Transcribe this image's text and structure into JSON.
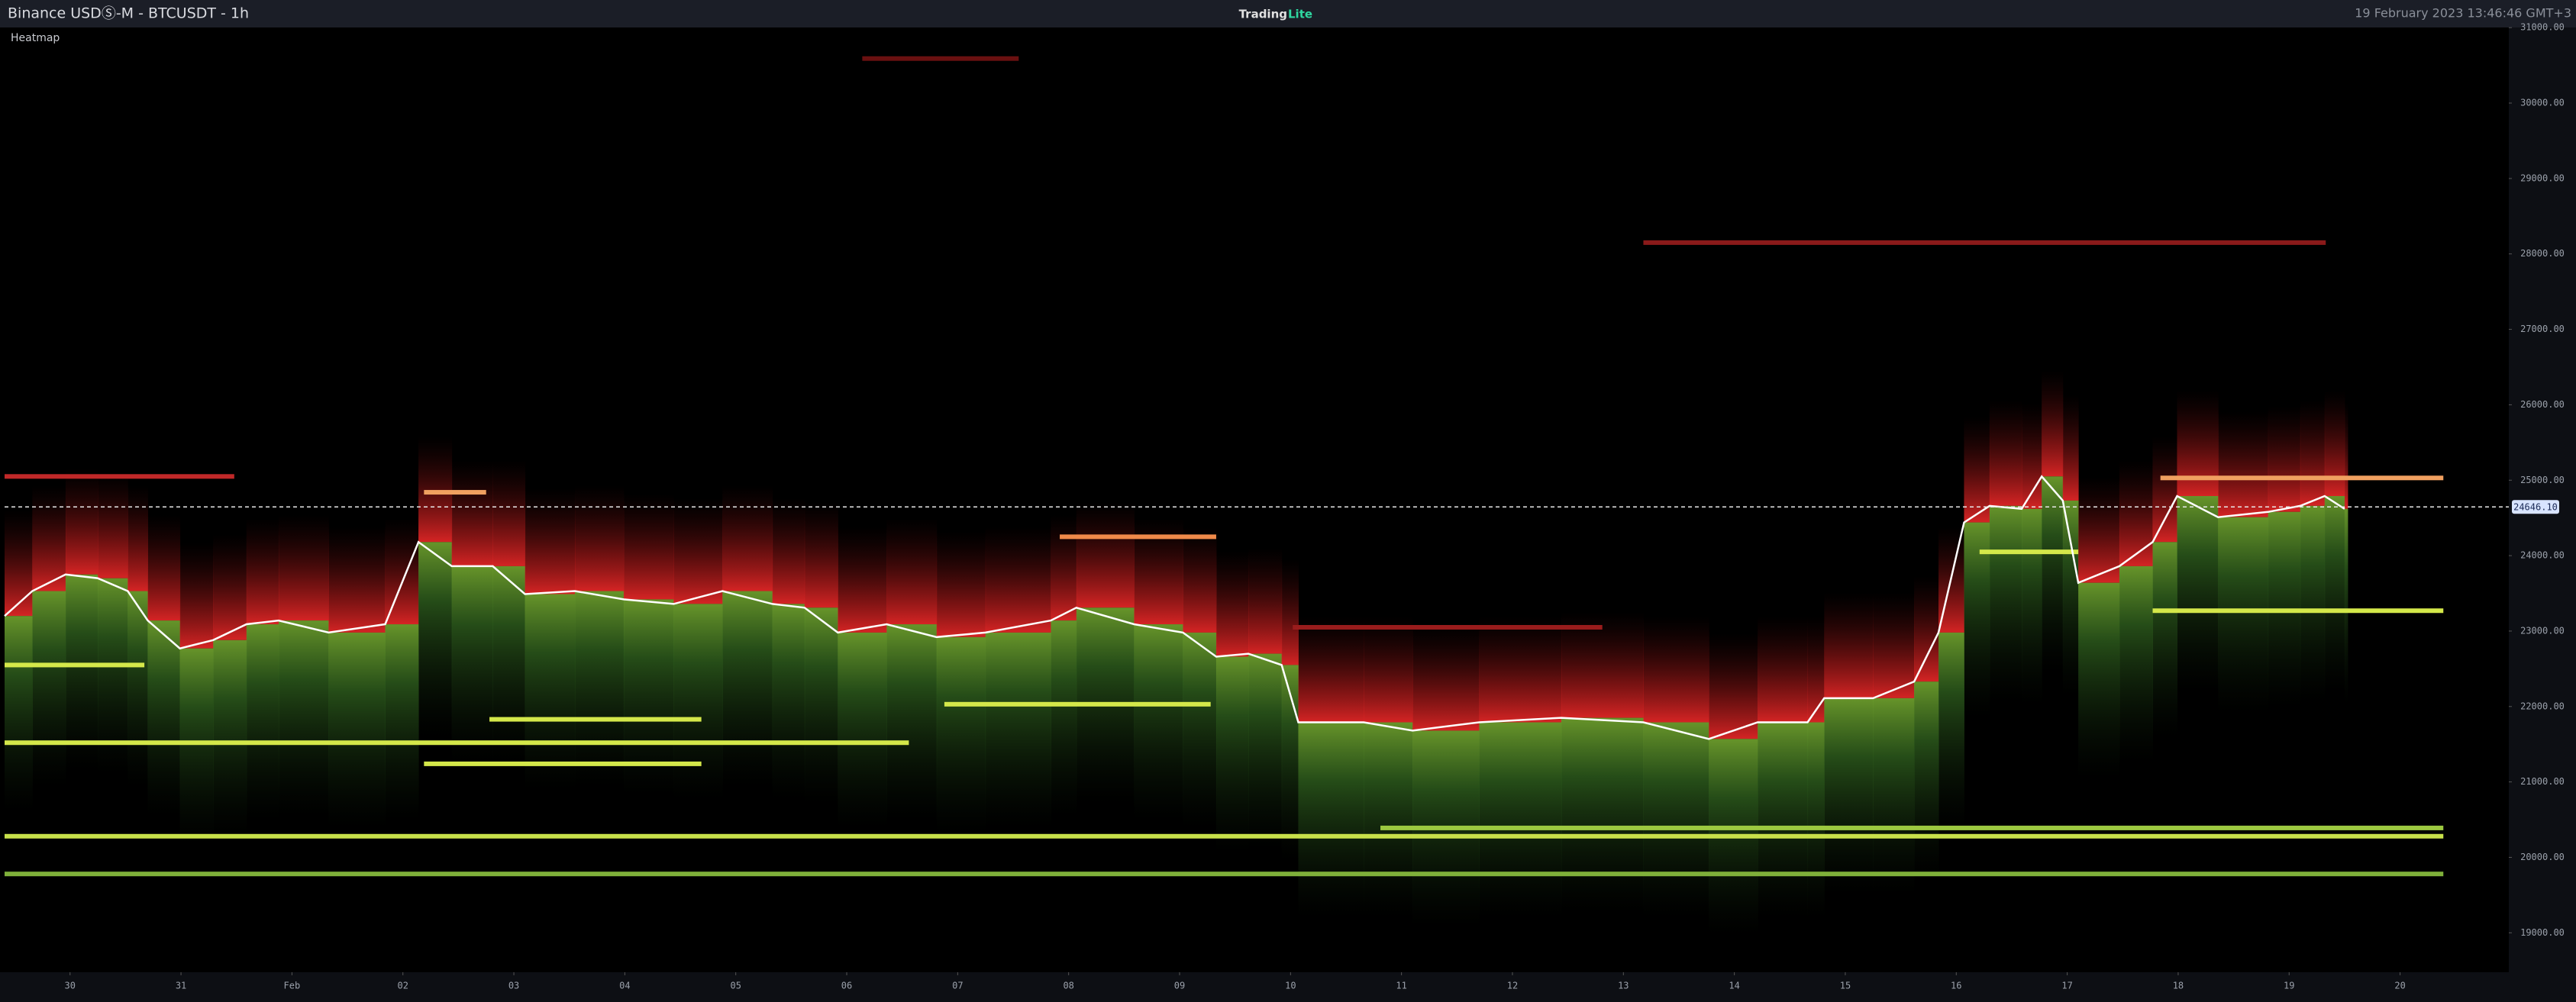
{
  "chart_data": {
    "type": "heatmap",
    "title": "Binance USDⓈ-M - BTCUSDT - 1h",
    "brand": "Trading",
    "brand_suffix": "Lite",
    "timestamp": "19 February 2023 13:46:46 GMT+3",
    "indicator": "Heatmap",
    "color": "#ffffff",
    "x": [
      29.41,
      29.66,
      29.96,
      30.25,
      30.52,
      30.7,
      30.99,
      31.29,
      31.59,
      31.88,
      32.33,
      32.84,
      33.14,
      33.44,
      33.81,
      34.1,
      34.55,
      34.99,
      35.44,
      35.88,
      36.33,
      36.62,
      36.92,
      37.36,
      37.81,
      38.25,
      38.84,
      39.07,
      39.59,
      40.03,
      40.33,
      40.62,
      40.92,
      41.07,
      41.66,
      42.1,
      42.7,
      43.44,
      44.18,
      44.77,
      45.21,
      45.66,
      45.81,
      46.25,
      46.62,
      46.84,
      47.07,
      47.3,
      47.59,
      47.77,
      47.96,
      48.1,
      48.47,
      48.77,
      48.99,
      49.36,
      49.81,
      50.1,
      50.32,
      50.5
    ],
    "values": [
      23200,
      23530,
      23750,
      23700,
      23530,
      23140,
      22770,
      22880,
      23090,
      23140,
      22980,
      23090,
      24180,
      23860,
      23860,
      23490,
      23530,
      23420,
      23360,
      23530,
      23360,
      23310,
      22980,
      23090,
      22920,
      22980,
      23140,
      23310,
      23090,
      22980,
      22660,
      22700,
      22550,
      21790,
      21790,
      21680,
      21790,
      21850,
      21790,
      21570,
      21790,
      21790,
      22110,
      22110,
      22330,
      22980,
      24440,
      24660,
      24620,
      25050,
      24730,
      23640,
      23860,
      24180,
      24790,
      24510,
      24580,
      24660,
      24790,
      24620
    ],
    "levels": [
      {
        "value": 22550,
        "x": [
          29.41,
          30.67
        ],
        "color": "#d4e84a"
      },
      {
        "value": 21520,
        "x": [
          29.41,
          37.56
        ],
        "color": "#d4e84a"
      },
      {
        "value": 21830,
        "x": [
          33.78,
          35.69
        ],
        "color": "#d4e84a"
      },
      {
        "value": 21240,
        "x": [
          33.19,
          35.69
        ],
        "color": "#d4e84a"
      },
      {
        "value": 22030,
        "x": [
          37.88,
          40.28
        ],
        "color": "#d4e84a"
      },
      {
        "value": 20280,
        "x": [
          29.41,
          51.39
        ],
        "color": "#c8e04a"
      },
      {
        "value": 19780,
        "x": [
          29.41,
          51.39
        ],
        "color": "#7fb03a"
      },
      {
        "value": 23270,
        "x": [
          48.77,
          51.39
        ],
        "color": "#d4e84a"
      },
      {
        "value": 24050,
        "x": [
          47.21,
          48.1
        ],
        "color": "#d4e84a"
      },
      {
        "value": 20390,
        "x": [
          41.81,
          51.39
        ],
        "color": "#9cc840"
      },
      {
        "value": 24250,
        "x": [
          38.92,
          40.33
        ],
        "color": "#f08a4a"
      },
      {
        "value": 24840,
        "x": [
          33.19,
          33.75
        ],
        "color": "#f0a060"
      },
      {
        "value": 25030,
        "x": [
          48.84,
          51.39
        ],
        "color": "#f0a060"
      },
      {
        "value": 25050,
        "x": [
          29.41,
          31.48
        ],
        "color": "#c02828"
      },
      {
        "value": 28150,
        "x": [
          44.18,
          50.33
        ],
        "color": "#8a1a1a"
      },
      {
        "value": 30590,
        "x": [
          37.14,
          38.55
        ],
        "color": "#6a1010"
      },
      {
        "value": 23050,
        "x": [
          41.02,
          43.81
        ],
        "color": "#9a1c1c"
      }
    ],
    "last_price": {
      "value": 24646.1,
      "label": "24646.10"
    },
    "xlim": [
      29.41,
      51.98
    ],
    "xticks": [
      {
        "value": 30,
        "label": "30"
      },
      {
        "value": 31,
        "label": "31"
      },
      {
        "value": 32,
        "label": "Feb"
      },
      {
        "value": 33,
        "label": "02"
      },
      {
        "value": 34,
        "label": "03"
      },
      {
        "value": 35,
        "label": "04"
      },
      {
        "value": 36,
        "label": "05"
      },
      {
        "value": 37,
        "label": "06"
      },
      {
        "value": 38,
        "label": "07"
      },
      {
        "value": 39,
        "label": "08"
      },
      {
        "value": 40,
        "label": "09"
      },
      {
        "value": 41,
        "label": "10"
      },
      {
        "value": 42,
        "label": "11"
      },
      {
        "value": 43,
        "label": "12"
      },
      {
        "value": 44,
        "label": "13"
      },
      {
        "value": 45,
        "label": "14"
      },
      {
        "value": 46,
        "label": "15"
      },
      {
        "value": 47,
        "label": "16"
      },
      {
        "value": 48,
        "label": "17"
      },
      {
        "value": 49,
        "label": "18"
      },
      {
        "value": 50,
        "label": "19"
      },
      {
        "value": 51,
        "label": "20"
      }
    ],
    "ylim": [
      18477,
      31002
    ],
    "yticks": [
      {
        "value": 19000,
        "label": "19000.00"
      },
      {
        "value": 20000,
        "label": "20000.00"
      },
      {
        "value": 21000,
        "label": "21000.00"
      },
      {
        "value": 22000,
        "label": "22000.00"
      },
      {
        "value": 23000,
        "label": "23000.00"
      },
      {
        "value": 24000,
        "label": "24000.00"
      },
      {
        "value": 25000,
        "label": "25000.00"
      },
      {
        "value": 26000,
        "label": "26000.00"
      },
      {
        "value": 27000,
        "label": "27000.00"
      },
      {
        "value": 28000,
        "label": "28000.00"
      },
      {
        "value": 29000,
        "label": "29000.00"
      },
      {
        "value": 30000,
        "label": "30000.00"
      },
      {
        "value": 31000,
        "label": "31000.00"
      }
    ]
  }
}
